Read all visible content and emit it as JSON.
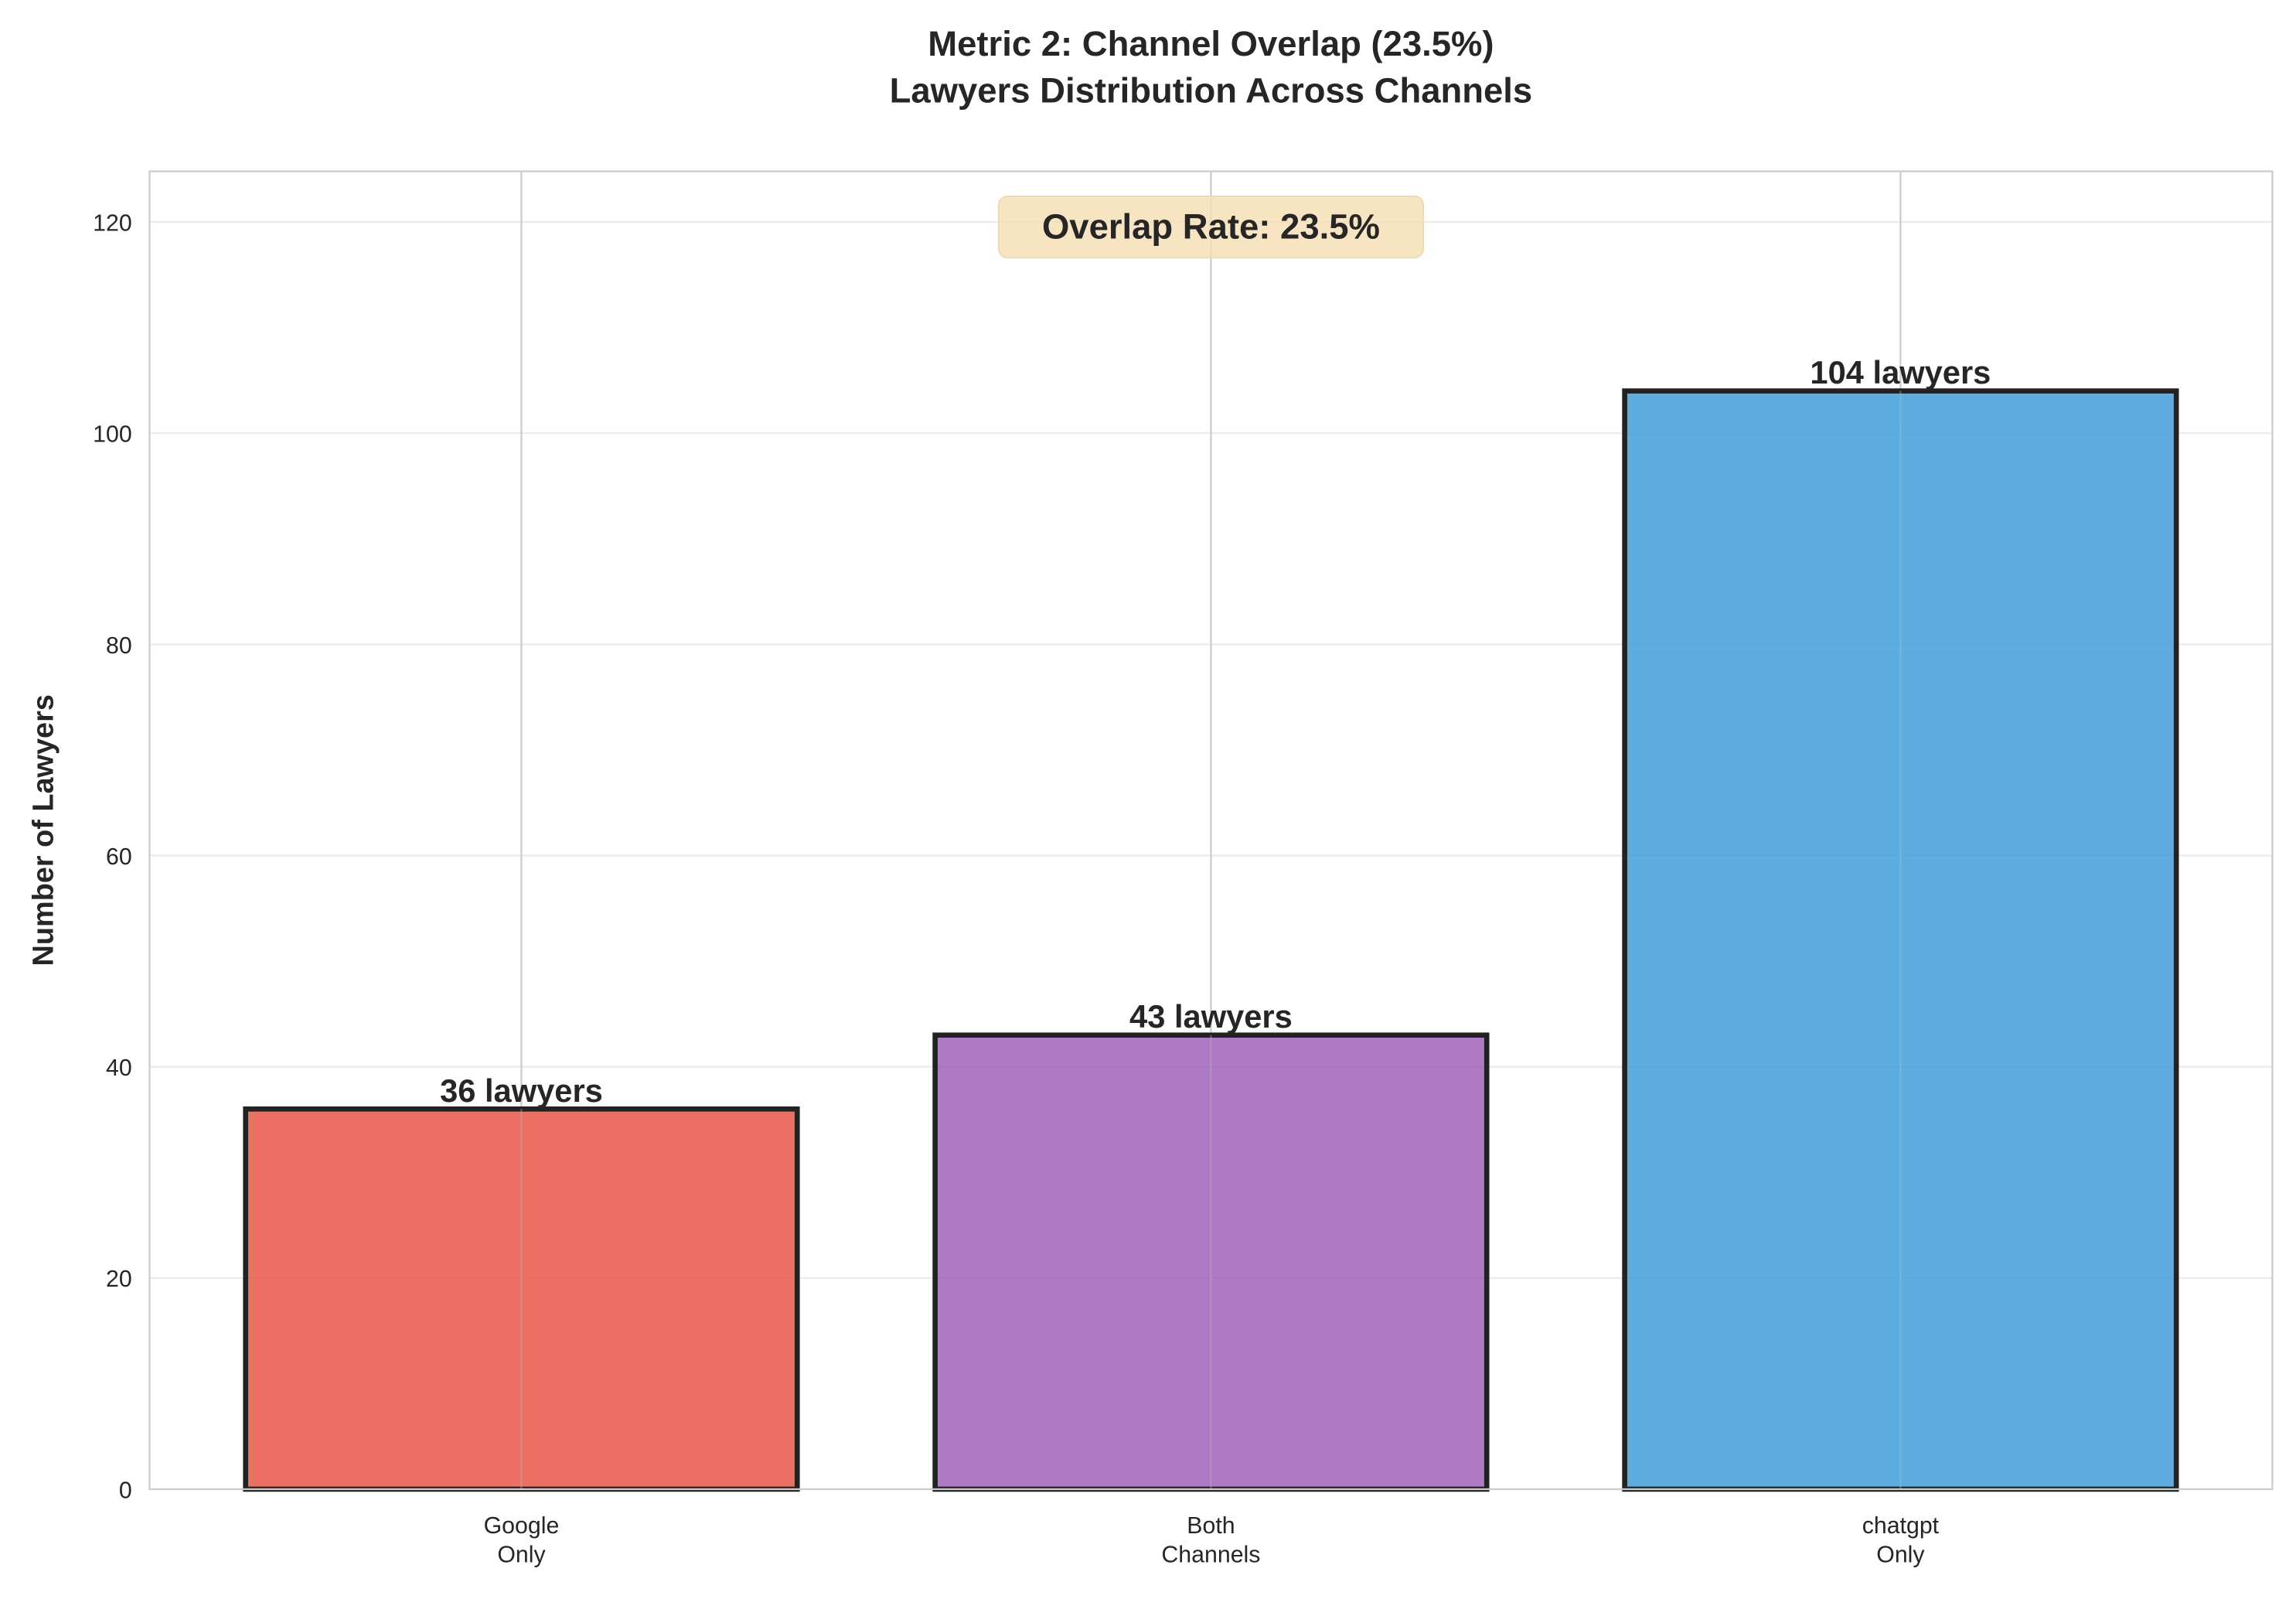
{
  "chart_data": {
    "type": "bar",
    "title": "Metric 2: Channel Overlap (23.5%)",
    "subtitle": "Lawyers Distribution Across Channels",
    "xlabel": "",
    "ylabel": "Number of Lawyers",
    "categories": [
      "Google\nOnly",
      "Both\nChannels",
      "chatgpt\nOnly"
    ],
    "values": [
      36,
      43,
      104
    ],
    "data_labels": [
      "36 lawyers",
      "43 lawyers",
      "104 lawyers"
    ],
    "colors": [
      "#e74c3c",
      "#9b59b6",
      "#3498db"
    ],
    "edge_color": "#222222",
    "ylim": [
      0,
      124.8
    ],
    "yticks": [
      0,
      20,
      40,
      60,
      80,
      100,
      120
    ],
    "grid": true,
    "annotation": "Overlap Rate: 23.5%",
    "annotation_bg": "#f5deb3"
  }
}
